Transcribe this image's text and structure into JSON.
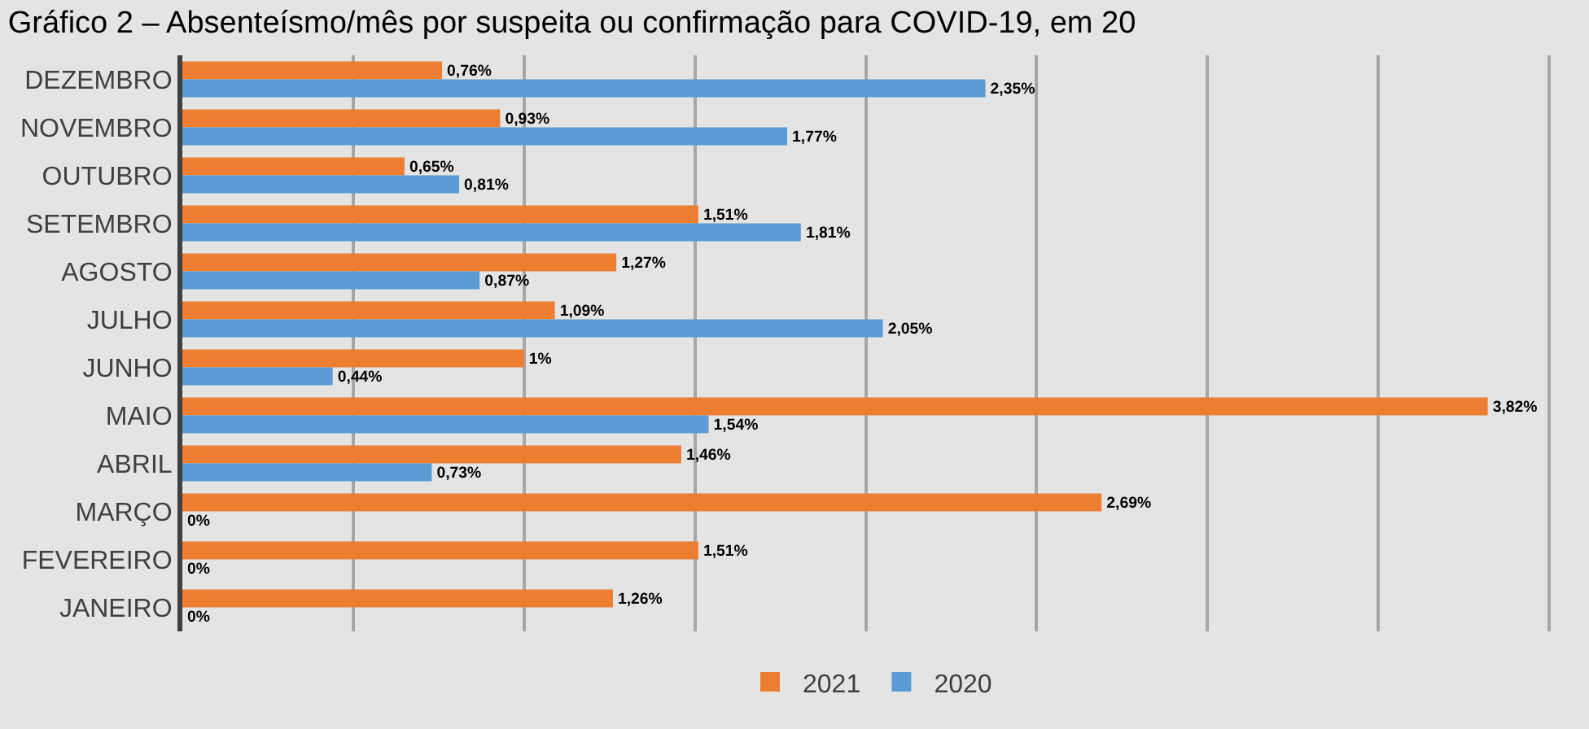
{
  "chart_data": {
    "type": "bar",
    "orientation": "horizontal",
    "title": "Gráfico 2 – Absenteísmo/mês por suspeita ou confirmação para COVID-19, em 20",
    "categories": [
      "DEZEMBRO",
      "NOVEMBRO",
      "OUTUBRO",
      "SETEMBRO",
      "AGOSTO",
      "JULHO",
      "JUNHO",
      "MAIO",
      "ABRIL",
      "MARÇO",
      "FEVEREIRO",
      "JANEIRO"
    ],
    "series": [
      {
        "name": "2021",
        "color": "#ed7d31",
        "values": [
          0.76,
          0.93,
          0.65,
          1.51,
          1.27,
          1.09,
          1,
          3.82,
          1.46,
          2.69,
          1.51,
          1.26
        ],
        "value_labels": [
          "0,76%",
          "0,93%",
          "0,65%",
          "1,51%",
          "1,27%",
          "1,09%",
          "1%",
          "3,82%",
          "1,46%",
          "2,69%",
          "1,51%",
          "1,26%"
        ]
      },
      {
        "name": "2020",
        "color": "#5b9bd5",
        "values": [
          2.35,
          1.77,
          0.81,
          1.81,
          0.87,
          2.05,
          0.44,
          1.54,
          0.73,
          0,
          0,
          0
        ],
        "value_labels": [
          "2,35%",
          "1,77%",
          "0,81%",
          "1,81%",
          "0,87%",
          "2,05%",
          "0,44%",
          "1,54%",
          "0,73%",
          "0%",
          "0%",
          "0%"
        ]
      }
    ],
    "tick_labels": "y",
    "grid": "x",
    "legend": "bottom"
  }
}
